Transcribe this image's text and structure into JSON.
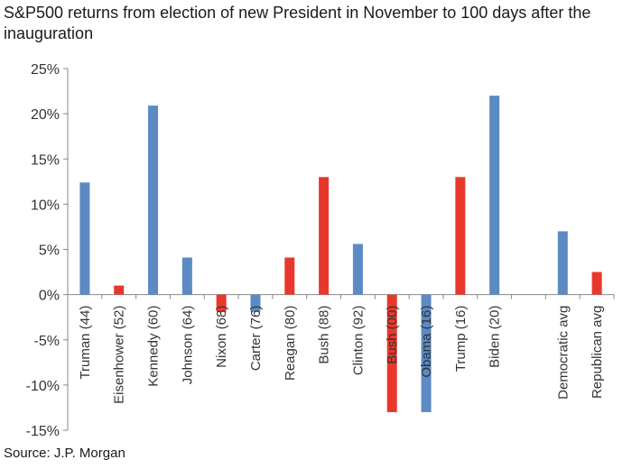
{
  "title": "S&P500 returns from election of new President in November to 100 days after the inauguration",
  "source": "Source: J.P. Morgan",
  "colors": {
    "democratic": "#5b8ac4",
    "republican": "#e8382b",
    "axis": "#888888"
  },
  "chart_data": {
    "type": "bar",
    "title": "S&P500 returns from election of new President in November to 100 days after the inauguration",
    "xlabel": "",
    "ylabel": "",
    "ylim": [
      -15,
      25
    ],
    "ytick_step": 5,
    "ytick_labels": [
      "25%",
      "20%",
      "15%",
      "10%",
      "5%",
      "0%",
      "-5%",
      "-10%",
      "-15%"
    ],
    "grid": false,
    "legend": "none",
    "categories": [
      "Truman (44)",
      "Eisenhower (52)",
      "Kennedy (60)",
      "Johnson (64)",
      "Nixon (68)",
      "Carter (76)",
      "Reagan (80)",
      "Bush (88)",
      "Clinton (92)",
      "Bush (00)",
      "Obama (16)",
      "Trump (16)",
      "Biden (20)",
      "",
      "Democratic avg",
      "Republican avg"
    ],
    "values": [
      12.4,
      1.0,
      20.9,
      4.1,
      -1.9,
      -1.9,
      4.1,
      13.0,
      5.6,
      -13.0,
      -13.0,
      13.0,
      22.0,
      null,
      7.0,
      2.5
    ],
    "party": [
      "D",
      "R",
      "D",
      "D",
      "R",
      "D",
      "R",
      "R",
      "D",
      "R",
      "D",
      "R",
      "D",
      "",
      "D",
      "R"
    ]
  }
}
